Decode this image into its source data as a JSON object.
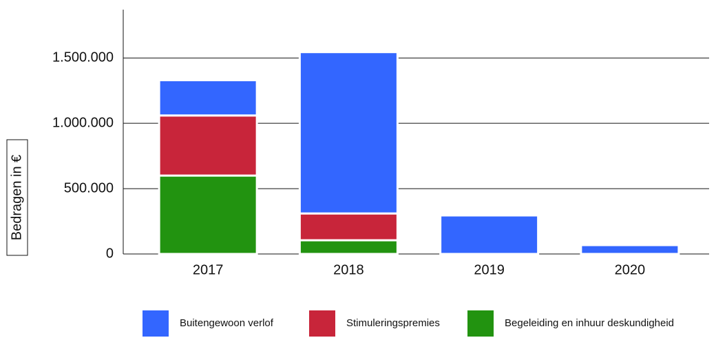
{
  "chart_data": {
    "type": "stacked_bar",
    "y_label": "Bedragen in €",
    "categories": [
      "2017",
      "2018",
      "2019",
      "2020"
    ],
    "series": [
      {
        "name": "Begeleiding en inhuur deskundigheid",
        "color": "#229310",
        "values": [
          600000,
          105000,
          0,
          0
        ]
      },
      {
        "name": "Stimuleringspremies",
        "color": "#c8253a",
        "values": [
          460000,
          205000,
          0,
          0
        ]
      },
      {
        "name": "Buitengewoon verlof",
        "color": "#3366ff",
        "values": [
          270000,
          1235000,
          295000,
          68000
        ]
      }
    ],
    "ylim": [
      0,
      1870000
    ],
    "yticks": [
      0,
      {
        "value": 500000,
        "label": "500.000"
      },
      {
        "value": 1000000,
        "label": "1.000.000"
      },
      {
        "value": 1500000,
        "label": "1.500.000"
      }
    ],
    "grid": true
  }
}
